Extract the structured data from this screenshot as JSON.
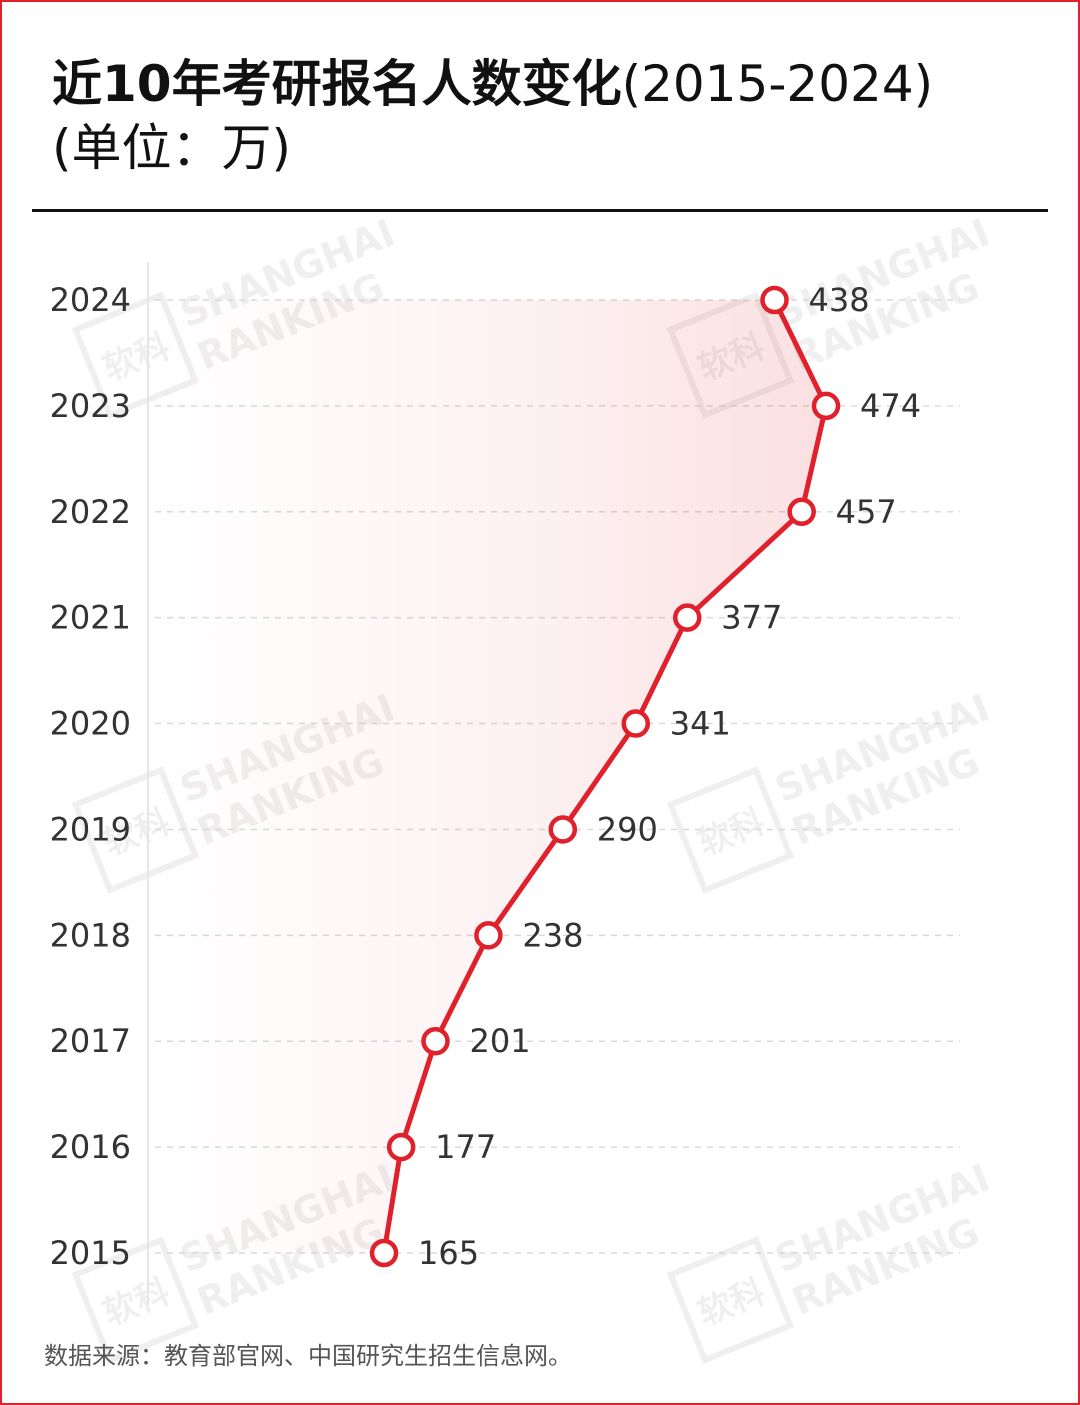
{
  "title": {
    "main": "近10年考研报名人数变化",
    "range": "(2015-2024)",
    "unit": "(单位：万)"
  },
  "source": "数据来源：教育部官网、中国研究生招生信息网。",
  "watermark": {
    "line1": "SHANGHAI",
    "line2": "RANKING",
    "logo_text": "软科"
  },
  "colors": {
    "accent": "#e0202b",
    "frame": "#e0202b",
    "text": "#111111"
  },
  "chart_data": {
    "type": "line",
    "orientation": "horizontal",
    "categories": [
      "2015",
      "2016",
      "2017",
      "2018",
      "2019",
      "2020",
      "2021",
      "2022",
      "2023",
      "2024"
    ],
    "values": [
      165,
      177,
      201,
      238,
      290,
      341,
      377,
      457,
      474,
      438
    ],
    "data_labels": [
      "165",
      "177",
      "201",
      "238",
      "290",
      "341",
      "377",
      "457",
      "474",
      "438"
    ],
    "xlim": [
      0,
      520
    ],
    "grid": true,
    "legend": "none"
  }
}
